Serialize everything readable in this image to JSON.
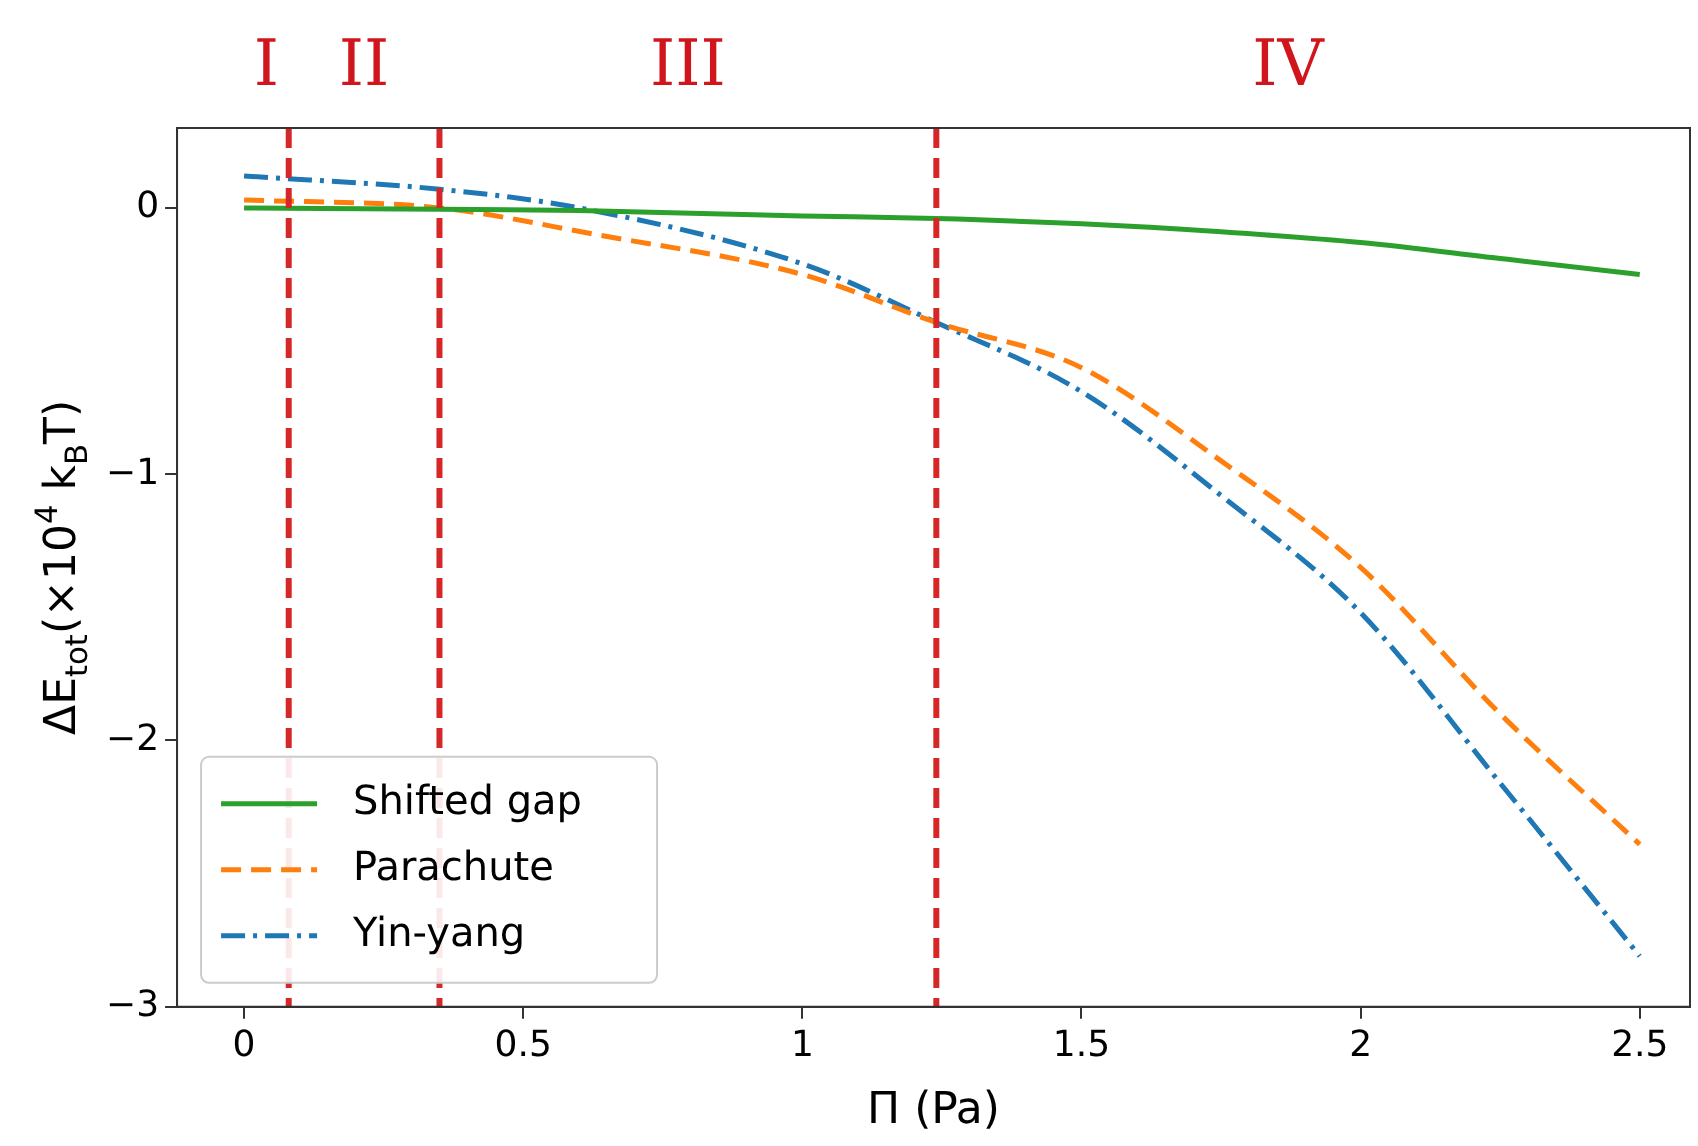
{
  "chart_data": {
    "type": "line",
    "xlabel": "Π (Pa)",
    "ylabel": "ΔE$_{tot}$(×10$^{4}$ k$_{B}$T)",
    "xlim": [
      -0.12,
      2.59
    ],
    "ylim": [
      -3,
      0.3
    ],
    "xticks": [
      0,
      0.5,
      1,
      1.5,
      2,
      2.5
    ],
    "yticks": [
      0,
      -1,
      -2,
      -3
    ],
    "grid": false,
    "legend": "bottom left",
    "marker": "none",
    "series": [
      {
        "name": "Shifted gap",
        "color": "#2ca02c",
        "line_style": "solid",
        "x": [
          0,
          0.35,
          0.6,
          1,
          1.24,
          1.5,
          1.75,
          2,
          2.25,
          2.5
        ],
        "values": [
          0,
          -0.005,
          -0.01,
          -0.03,
          -0.04,
          -0.06,
          -0.09,
          -0.13,
          -0.19,
          -0.25
        ]
      },
      {
        "name": "Parachute",
        "color": "#ff7f0e",
        "line_style": "dashed",
        "x": [
          0,
          0.35,
          0.63,
          1,
          1.24,
          1.5,
          1.75,
          2,
          2.25,
          2.5
        ],
        "values": [
          0.03,
          0,
          -0.1,
          -0.25,
          -0.43,
          -0.6,
          -0.95,
          -1.35,
          -1.9,
          -2.39
        ]
      },
      {
        "name": "Yin-yang",
        "color": "#1f77b4",
        "line_style": "dashdot",
        "x": [
          0,
          0.35,
          0.6,
          1,
          1.24,
          1.5,
          1.75,
          2,
          2.25,
          2.5
        ],
        "values": [
          0.12,
          0.07,
          0,
          -0.21,
          -0.43,
          -0.69,
          -1.08,
          -1.52,
          -2.16,
          -2.81
        ]
      }
    ],
    "ref_lines": [
      {
        "axis": "x",
        "value": 0.08,
        "color": "#d62728",
        "line_style": "dashed"
      },
      {
        "axis": "x",
        "value": 0.35,
        "color": "#d62728",
        "line_style": "dashed"
      },
      {
        "axis": "x",
        "value": 1.24,
        "color": "#d62728",
        "line_style": "dashed"
      }
    ],
    "annotations": [
      "I",
      "II",
      "III",
      "IV"
    ]
  }
}
